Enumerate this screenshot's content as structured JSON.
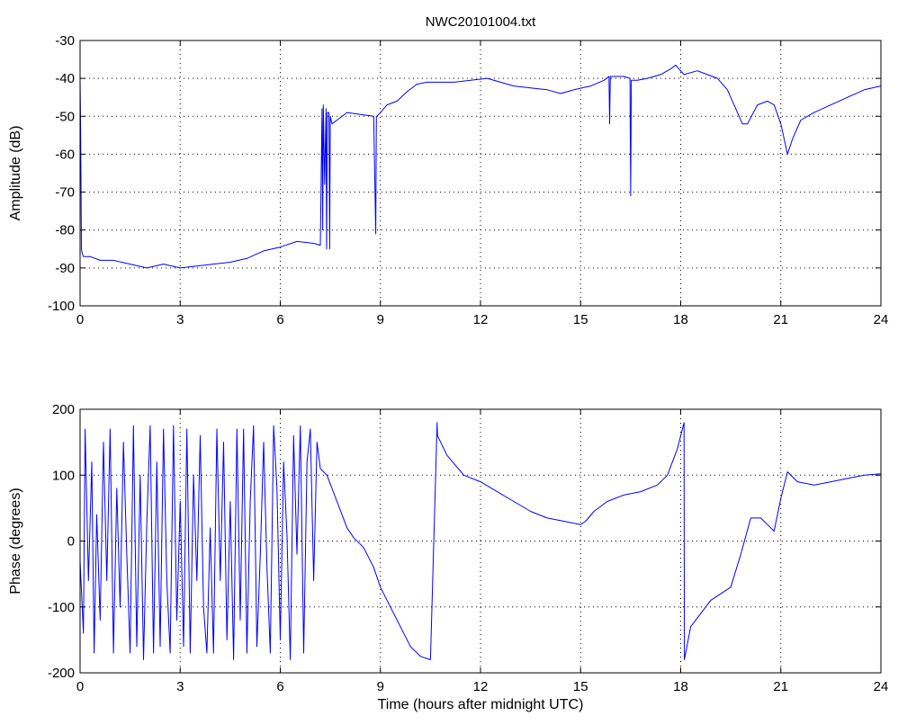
{
  "figure": {
    "title": "NWC20101004.txt"
  },
  "chart_data": [
    {
      "type": "line",
      "title": "NWC20101004.txt",
      "xlabel": "",
      "ylabel": "Amplitude (dB)",
      "xlim": [
        0,
        24
      ],
      "ylim": [
        -100,
        -30
      ],
      "xticks": [
        0,
        3,
        6,
        9,
        12,
        15,
        18,
        21,
        24
      ],
      "yticks": [
        -100,
        -90,
        -80,
        -70,
        -60,
        -50,
        -40,
        -30
      ],
      "grid": true,
      "series": [
        {
          "color": "#0000ff",
          "x": [
            0,
            0.02,
            0.04,
            0.06,
            0.1,
            0.3,
            0.6,
            1.0,
            1.5,
            2.0,
            2.5,
            3.0,
            3.5,
            4.0,
            4.5,
            5.0,
            5.5,
            6.0,
            6.5,
            7.0,
            7.2,
            7.25,
            7.27,
            7.29,
            7.33,
            7.37,
            7.39,
            7.41,
            7.46,
            7.48,
            7.5,
            7.55,
            7.7,
            8.0,
            8.4,
            8.8,
            8.86,
            8.88,
            8.9,
            8.95,
            9.2,
            9.5,
            9.8,
            10.1,
            10.4,
            10.7,
            11.2,
            11.7,
            12.2,
            12.6,
            13.0,
            13.5,
            14.0,
            14.4,
            14.8,
            15.3,
            15.7,
            15.85,
            15.87,
            15.89,
            16.0,
            16.3,
            16.48,
            16.5,
            16.52,
            16.7,
            17.0,
            17.4,
            17.7,
            17.85,
            18.1,
            18.5,
            18.8,
            19.1,
            19.4,
            19.6,
            19.85,
            20.0,
            20.3,
            20.6,
            20.8,
            21.0,
            21.2,
            21.35,
            21.6,
            22.0,
            22.5,
            23.0,
            23.5,
            24.0
          ],
          "y": [
            -40,
            -55,
            -85,
            -86,
            -87,
            -87,
            -88,
            -88,
            -89,
            -90,
            -89,
            -90,
            -89.5,
            -89,
            -88.5,
            -87.5,
            -85.5,
            -84.5,
            -83,
            -83.5,
            -84,
            -48,
            -80,
            -47,
            -68,
            -48,
            -85,
            -49,
            -49,
            -85,
            -50,
            -52,
            -51,
            -49,
            -49.5,
            -50,
            -81,
            -50,
            -50,
            -49.5,
            -47,
            -46,
            -43.5,
            -41.5,
            -41,
            -41,
            -41,
            -40.5,
            -40,
            -41,
            -42,
            -42.5,
            -43,
            -44,
            -43,
            -42,
            -40.5,
            -39.5,
            -52,
            -39.5,
            -39.5,
            -39.5,
            -40,
            -71,
            -40.5,
            -40.5,
            -40,
            -39,
            -37.5,
            -36.5,
            -39,
            -38,
            -39,
            -40,
            -43,
            -47,
            -52,
            -52,
            -47,
            -46,
            -47,
            -52,
            -60,
            -56,
            -51,
            -49,
            -47,
            -45,
            -43,
            -42
          ]
        }
      ]
    },
    {
      "type": "line",
      "title": "",
      "xlabel": "Time (hours after midnight UTC)",
      "ylabel": "Phase (degrees)",
      "xlim": [
        0,
        24
      ],
      "ylim": [
        -200,
        200
      ],
      "xticks": [
        0,
        3,
        6,
        9,
        12,
        15,
        18,
        21,
        24
      ],
      "yticks": [
        -200,
        -100,
        0,
        100,
        200
      ],
      "grid": true,
      "series": [
        {
          "color": "#0000ff",
          "x": [
            0,
            0.1,
            0.15,
            0.25,
            0.35,
            0.42,
            0.5,
            0.6,
            0.7,
            0.8,
            0.9,
            1.0,
            1.1,
            1.2,
            1.3,
            1.4,
            1.5,
            1.6,
            1.7,
            1.8,
            1.9,
            2.0,
            2.1,
            2.2,
            2.3,
            2.4,
            2.5,
            2.6,
            2.7,
            2.8,
            2.9,
            3.0,
            3.1,
            3.2,
            3.3,
            3.4,
            3.5,
            3.6,
            3.7,
            3.8,
            3.9,
            4.0,
            4.1,
            4.2,
            4.3,
            4.4,
            4.5,
            4.6,
            4.7,
            4.8,
            4.9,
            5.0,
            5.1,
            5.2,
            5.3,
            5.4,
            5.5,
            5.6,
            5.7,
            5.8,
            5.9,
            6.0,
            6.1,
            6.2,
            6.3,
            6.4,
            6.5,
            6.6,
            6.7,
            6.8,
            6.9,
            7.0,
            7.1,
            7.2,
            7.4,
            7.7,
            8.0,
            8.2,
            8.5,
            8.8,
            9.0,
            9.3,
            9.6,
            9.9,
            10.2,
            10.5,
            10.7,
            10.71,
            11.0,
            11.5,
            12.0,
            12.5,
            13.0,
            13.5,
            14.0,
            14.5,
            15.0,
            15.15,
            15.4,
            15.8,
            16.3,
            16.8,
            17.3,
            17.6,
            17.9,
            18.1,
            18.11,
            18.3,
            18.6,
            18.9,
            19.2,
            19.5,
            19.8,
            20.1,
            20.4,
            20.6,
            20.8,
            21.0,
            21.2,
            21.5,
            22.0,
            22.5,
            23.0,
            23.5,
            24.0
          ],
          "y": [
            -30,
            -140,
            170,
            -60,
            120,
            -170,
            40,
            -120,
            150,
            -60,
            170,
            -170,
            80,
            -100,
            150,
            -20,
            -170,
            175,
            -160,
            100,
            -180,
            30,
            175,
            -170,
            120,
            -160,
            170,
            -60,
            -170,
            175,
            -120,
            60,
            -160,
            170,
            -170,
            100,
            -60,
            160,
            -100,
            -170,
            20,
            -170,
            170,
            -60,
            150,
            -150,
            60,
            -180,
            170,
            -120,
            170,
            -170,
            60,
            175,
            -160,
            -20,
            150,
            -40,
            -170,
            175,
            80,
            -150,
            120,
            10,
            -180,
            160,
            -20,
            175,
            -170,
            120,
            170,
            -60,
            150,
            110,
            100,
            60,
            20,
            5,
            -10,
            -40,
            -70,
            -100,
            -130,
            -160,
            -175,
            -180,
            180,
            160,
            130,
            100,
            90,
            75,
            60,
            45,
            35,
            30,
            25,
            30,
            45,
            60,
            70,
            75,
            85,
            100,
            140,
            180,
            -180,
            -130,
            -110,
            -90,
            -80,
            -70,
            -20,
            35,
            35,
            25,
            15,
            65,
            105,
            90,
            85,
            90,
            95,
            100,
            102
          ]
        }
      ]
    }
  ]
}
